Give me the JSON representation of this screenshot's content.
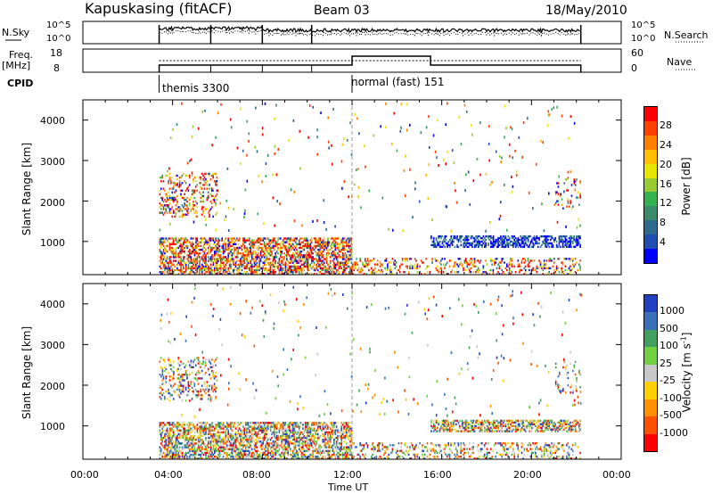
{
  "header": {
    "station": "Kapuskasing (fitACF)",
    "beam": "Beam 03",
    "date": "18/May/2010"
  },
  "strips": {
    "nsky_label": "N.Sky",
    "nsky_ticks": [
      "10^5",
      "10^0"
    ],
    "nsearch_label": "N.Search",
    "nsearch_ticks": [
      "10^5",
      "10^0"
    ],
    "freq_label": "Freq.",
    "freq_unit": "[MHz]",
    "freq_ticks": [
      "18",
      "8"
    ],
    "nave_label": "Nave",
    "nave_ticks": [
      "60",
      "0"
    ],
    "cpid_label": "CPID",
    "cpid_segments": [
      {
        "start_hour": 3.4,
        "label": "themis 3300"
      },
      {
        "start_hour": 12.0,
        "label": "normal (fast) 151"
      }
    ]
  },
  "panels": {
    "ylabel": "Slant Range [km]",
    "yticks": [
      "4000",
      "3000",
      "2000",
      "1000"
    ],
    "xlabel": "Time UT",
    "xticks": [
      "00:00",
      "04:00",
      "08:00",
      "12:00",
      "16:00",
      "20:00",
      "00:00"
    ]
  },
  "power_colorbar": {
    "label": "Power [dB]",
    "ticks": [
      "28",
      "24",
      "20",
      "16",
      "12",
      "8",
      "4"
    ],
    "colors": [
      "#ff0000",
      "#ff4000",
      "#ff8000",
      "#ffbf00",
      "#e6e600",
      "#99cc33",
      "#33b24d",
      "#3a8a6e",
      "#2e6b8f",
      "#1f4fb0",
      "#0000ff"
    ]
  },
  "velocity_colorbar": {
    "label": "Velocity [m s",
    "label_sup": "-1",
    "label_end": "]",
    "ticks": [
      "1000",
      "500",
      "100",
      "25",
      "-25",
      "-100",
      "-500",
      "-1000"
    ],
    "colors": [
      "#2040c0",
      "#3a70b8",
      "#40a060",
      "#70d040",
      "#c8c8c8",
      "#ffd000",
      "#ff9000",
      "#ff5000",
      "#ff0000"
    ]
  },
  "chart_data": {
    "type": "heatmap",
    "x_range_hours": [
      0,
      24
    ],
    "y_range_km": [
      180,
      4500
    ],
    "data_start_hour": 3.4,
    "data_end_hour": 22.2,
    "mode_change_hour": 12.0,
    "scatter_regions": [
      {
        "name": "near-range band",
        "t0": 3.4,
        "t1": 12.0,
        "r0": 180,
        "r1": 1100,
        "density": "high"
      },
      {
        "name": "near-range band",
        "t0": 12.0,
        "t1": 22.2,
        "r0": 180,
        "r1": 600,
        "density": "medium"
      },
      {
        "name": "1000 km band",
        "t0": 15.5,
        "t1": 22.2,
        "r0": 850,
        "r1": 1150,
        "density": "high"
      },
      {
        "name": "early far-range",
        "t0": 3.4,
        "t1": 6.0,
        "r0": 1600,
        "r1": 2700,
        "density": "medium"
      },
      {
        "name": "late far-range",
        "t0": 21.0,
        "t1": 22.2,
        "r0": 1800,
        "r1": 2600,
        "density": "low"
      }
    ]
  }
}
